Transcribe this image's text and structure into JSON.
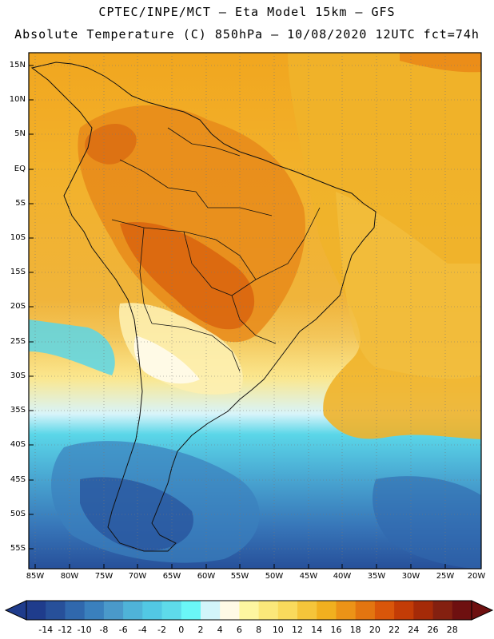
{
  "header": {
    "line1": "CPTEC/INPE/MCT –  Eta Model 15km – GFS",
    "line2": "Absolute Temperature (C) 850hPa – 10/08/2020 12UTC fct=74h"
  },
  "map": {
    "region": "South America",
    "lat_labels": [
      "15N",
      "10N",
      "5N",
      "EQ",
      "5S",
      "10S",
      "15S",
      "20S",
      "25S",
      "30S",
      "35S",
      "40S",
      "45S",
      "50S",
      "55S"
    ],
    "lon_labels": [
      "85W",
      "80W",
      "75W",
      "70W",
      "65W",
      "60W",
      "55W",
      "50W",
      "45W",
      "40W",
      "35W",
      "30W",
      "25W",
      "20W"
    ]
  },
  "colorbar": {
    "labels": [
      "-14",
      "-12",
      "-10",
      "-8",
      "-6",
      "-4",
      "-2",
      "0",
      "2",
      "4",
      "6",
      "8",
      "10",
      "12",
      "14",
      "16",
      "18",
      "20",
      "22",
      "24",
      "26",
      "28"
    ],
    "colors": [
      "#1f3c8c",
      "#27509a",
      "#3068ad",
      "#3a80bd",
      "#4a99ca",
      "#4fb3d8",
      "#52c8e4",
      "#5edbea",
      "#6af7f7",
      "#d2f5fa",
      "#fffae6",
      "#fdf6a0",
      "#fbe87a",
      "#f9da5c",
      "#f5c53a",
      "#f1b01f",
      "#ec9317",
      "#e37510",
      "#d9560a",
      "#c33c06",
      "#a52a08",
      "#842010",
      "#6e1010"
    ]
  }
}
